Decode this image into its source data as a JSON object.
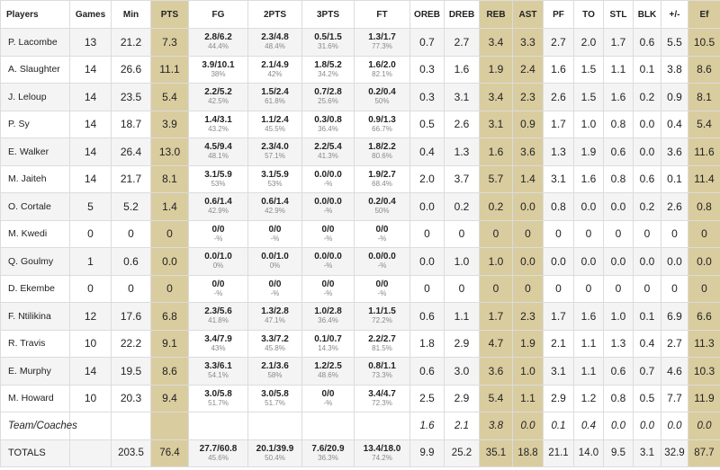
{
  "columns": [
    "Players",
    "Games",
    "Min",
    "PTS",
    "FG",
    "2PTS",
    "3PTS",
    "FT",
    "OREB",
    "DREB",
    "REB",
    "AST",
    "PF",
    "TO",
    "STL",
    "BLK",
    "+/-",
    "Ef"
  ],
  "players": [
    {
      "name": "P. Lacombe",
      "games": "13",
      "min": "21.2",
      "pts": "7.3",
      "fg": "2.8/6.2",
      "fg_pct": "44.4%",
      "p2": "2.3/4.8",
      "p2_pct": "48.4%",
      "p3": "0.5/1.5",
      "p3_pct": "31.6%",
      "ft": "1.3/1.7",
      "ft_pct": "77.3%",
      "oreb": "0.7",
      "dreb": "2.7",
      "reb": "3.4",
      "ast": "3.3",
      "pf": "2.7",
      "to": "2.0",
      "stl": "1.7",
      "blk": "0.6",
      "pm": "5.5",
      "ef": "10.5"
    },
    {
      "name": "A. Slaughter",
      "games": "14",
      "min": "26.6",
      "pts": "11.1",
      "fg": "3.9/10.1",
      "fg_pct": "38%",
      "p2": "2.1/4.9",
      "p2_pct": "42%",
      "p3": "1.8/5.2",
      "p3_pct": "34.2%",
      "ft": "1.6/2.0",
      "ft_pct": "82.1%",
      "oreb": "0.3",
      "dreb": "1.6",
      "reb": "1.9",
      "ast": "2.4",
      "pf": "1.6",
      "to": "1.5",
      "stl": "1.1",
      "blk": "0.1",
      "pm": "3.8",
      "ef": "8.6"
    },
    {
      "name": "J. Leloup",
      "games": "14",
      "min": "23.5",
      "pts": "5.4",
      "fg": "2.2/5.2",
      "fg_pct": "42.5%",
      "p2": "1.5/2.4",
      "p2_pct": "61.8%",
      "p3": "0.7/2.8",
      "p3_pct": "25.6%",
      "ft": "0.2/0.4",
      "ft_pct": "50%",
      "oreb": "0.3",
      "dreb": "3.1",
      "reb": "3.4",
      "ast": "2.3",
      "pf": "2.6",
      "to": "1.5",
      "stl": "1.6",
      "blk": "0.2",
      "pm": "0.9",
      "ef": "8.1"
    },
    {
      "name": "P. Sy",
      "games": "14",
      "min": "18.7",
      "pts": "3.9",
      "fg": "1.4/3.1",
      "fg_pct": "43.2%",
      "p2": "1.1/2.4",
      "p2_pct": "45.5%",
      "p3": "0.3/0.8",
      "p3_pct": "36.4%",
      "ft": "0.9/1.3",
      "ft_pct": "66.7%",
      "oreb": "0.5",
      "dreb": "2.6",
      "reb": "3.1",
      "ast": "0.9",
      "pf": "1.7",
      "to": "1.0",
      "stl": "0.8",
      "blk": "0.0",
      "pm": "0.4",
      "ef": "5.4"
    },
    {
      "name": "E. Walker",
      "games": "14",
      "min": "26.4",
      "pts": "13.0",
      "fg": "4.5/9.4",
      "fg_pct": "48.1%",
      "p2": "2.3/4.0",
      "p2_pct": "57.1%",
      "p3": "2.2/5.4",
      "p3_pct": "41.3%",
      "ft": "1.8/2.2",
      "ft_pct": "80.6%",
      "oreb": "0.4",
      "dreb": "1.3",
      "reb": "1.6",
      "ast": "3.6",
      "pf": "1.3",
      "to": "1.9",
      "stl": "0.6",
      "blk": "0.0",
      "pm": "3.6",
      "ef": "11.6"
    },
    {
      "name": "M. Jaiteh",
      "games": "14",
      "min": "21.7",
      "pts": "8.1",
      "fg": "3.1/5.9",
      "fg_pct": "53%",
      "p2": "3.1/5.9",
      "p2_pct": "53%",
      "p3": "0.0/0.0",
      "p3_pct": "-%",
      "ft": "1.9/2.7",
      "ft_pct": "68.4%",
      "oreb": "2.0",
      "dreb": "3.7",
      "reb": "5.7",
      "ast": "1.4",
      "pf": "3.1",
      "to": "1.6",
      "stl": "0.8",
      "blk": "0.6",
      "pm": "0.1",
      "ef": "11.4"
    },
    {
      "name": "O. Cortale",
      "games": "5",
      "min": "5.2",
      "pts": "1.4",
      "fg": "0.6/1.4",
      "fg_pct": "42.9%",
      "p2": "0.6/1.4",
      "p2_pct": "42.9%",
      "p3": "0.0/0.0",
      "p3_pct": "-%",
      "ft": "0.2/0.4",
      "ft_pct": "50%",
      "oreb": "0.0",
      "dreb": "0.2",
      "reb": "0.2",
      "ast": "0.0",
      "pf": "0.8",
      "to": "0.0",
      "stl": "0.0",
      "blk": "0.2",
      "pm": "2.6",
      "ef": "0.8"
    },
    {
      "name": "M. Kwedi",
      "games": "0",
      "min": "0",
      "pts": "0",
      "fg": "0/0",
      "fg_pct": "-%",
      "p2": "0/0",
      "p2_pct": "-%",
      "p3": "0/0",
      "p3_pct": "-%",
      "ft": "0/0",
      "ft_pct": "-%",
      "oreb": "0",
      "dreb": "0",
      "reb": "0",
      "ast": "0",
      "pf": "0",
      "to": "0",
      "stl": "0",
      "blk": "0",
      "pm": "0",
      "ef": "0"
    },
    {
      "name": "Q. Goulmy",
      "games": "1",
      "min": "0.6",
      "pts": "0.0",
      "fg": "0.0/1.0",
      "fg_pct": "0%",
      "p2": "0.0/1.0",
      "p2_pct": "0%",
      "p3": "0.0/0.0",
      "p3_pct": "-%",
      "ft": "0.0/0.0",
      "ft_pct": "-%",
      "oreb": "0.0",
      "dreb": "1.0",
      "reb": "1.0",
      "ast": "0.0",
      "pf": "0.0",
      "to": "0.0",
      "stl": "0.0",
      "blk": "0.0",
      "pm": "0.0",
      "ef": "0.0"
    },
    {
      "name": "D. Ekembe",
      "games": "0",
      "min": "0",
      "pts": "0",
      "fg": "0/0",
      "fg_pct": "-%",
      "p2": "0/0",
      "p2_pct": "-%",
      "p3": "0/0",
      "p3_pct": "-%",
      "ft": "0/0",
      "ft_pct": "-%",
      "oreb": "0",
      "dreb": "0",
      "reb": "0",
      "ast": "0",
      "pf": "0",
      "to": "0",
      "stl": "0",
      "blk": "0",
      "pm": "0",
      "ef": "0"
    },
    {
      "name": "F. Ntilikina",
      "games": "12",
      "min": "17.6",
      "pts": "6.8",
      "fg": "2.3/5.6",
      "fg_pct": "41.8%",
      "p2": "1.3/2.8",
      "p2_pct": "47.1%",
      "p3": "1.0/2.8",
      "p3_pct": "36.4%",
      "ft": "1.1/1.5",
      "ft_pct": "72.2%",
      "oreb": "0.6",
      "dreb": "1.1",
      "reb": "1.7",
      "ast": "2.3",
      "pf": "1.7",
      "to": "1.6",
      "stl": "1.0",
      "blk": "0.1",
      "pm": "6.9",
      "ef": "6.6"
    },
    {
      "name": "R. Travis",
      "games": "10",
      "min": "22.2",
      "pts": "9.1",
      "fg": "3.4/7.9",
      "fg_pct": "43%",
      "p2": "3.3/7.2",
      "p2_pct": "45.8%",
      "p3": "0.1/0.7",
      "p3_pct": "14.3%",
      "ft": "2.2/2.7",
      "ft_pct": "81.5%",
      "oreb": "1.8",
      "dreb": "2.9",
      "reb": "4.7",
      "ast": "1.9",
      "pf": "2.1",
      "to": "1.1",
      "stl": "1.3",
      "blk": "0.4",
      "pm": "2.7",
      "ef": "11.3"
    },
    {
      "name": "E. Murphy",
      "games": "14",
      "min": "19.5",
      "pts": "8.6",
      "fg": "3.3/6.1",
      "fg_pct": "54.1%",
      "p2": "2.1/3.6",
      "p2_pct": "58%",
      "p3": "1.2/2.5",
      "p3_pct": "48.6%",
      "ft": "0.8/1.1",
      "ft_pct": "73.3%",
      "oreb": "0.6",
      "dreb": "3.0",
      "reb": "3.6",
      "ast": "1.0",
      "pf": "3.1",
      "to": "1.1",
      "stl": "0.6",
      "blk": "0.7",
      "pm": "4.6",
      "ef": "10.3"
    },
    {
      "name": "M. Howard",
      "games": "10",
      "min": "20.3",
      "pts": "9.4",
      "fg": "3.0/5.8",
      "fg_pct": "51.7%",
      "p2": "3.0/5.8",
      "p2_pct": "51.7%",
      "p3": "0/0",
      "p3_pct": "-%",
      "ft": "3.4/4.7",
      "ft_pct": "72.3%",
      "oreb": "2.5",
      "dreb": "2.9",
      "reb": "5.4",
      "ast": "1.1",
      "pf": "2.9",
      "to": "1.2",
      "stl": "0.8",
      "blk": "0.5",
      "pm": "7.7",
      "ef": "11.9"
    }
  ],
  "team": {
    "name": "Team/Coaches",
    "oreb": "1.6",
    "dreb": "2.1",
    "reb": "3.8",
    "ast": "0.0",
    "pf": "0.1",
    "to": "0.4",
    "stl": "0.0",
    "blk": "0.0",
    "pm": "0.0",
    "ef": "0.0"
  },
  "totals": {
    "name": "TOTALS",
    "min": "203.5",
    "pts": "76.4",
    "fg": "27.7/60.8",
    "fg_pct": "45.6%",
    "p2": "20.1/39.9",
    "p2_pct": "50.4%",
    "p3": "7.6/20.9",
    "p3_pct": "36.3%",
    "ft": "13.4/18.0",
    "ft_pct": "74.2%",
    "oreb": "9.9",
    "dreb": "25.2",
    "reb": "35.1",
    "ast": "18.8",
    "pf": "21.1",
    "to": "14.0",
    "stl": "9.5",
    "blk": "3.1",
    "pm": "32.9",
    "ef": "87.7"
  },
  "colors": {
    "highlight": "#d9cc9e",
    "row_alt": "#f4f4f4",
    "border": "#dcdcdc"
  }
}
